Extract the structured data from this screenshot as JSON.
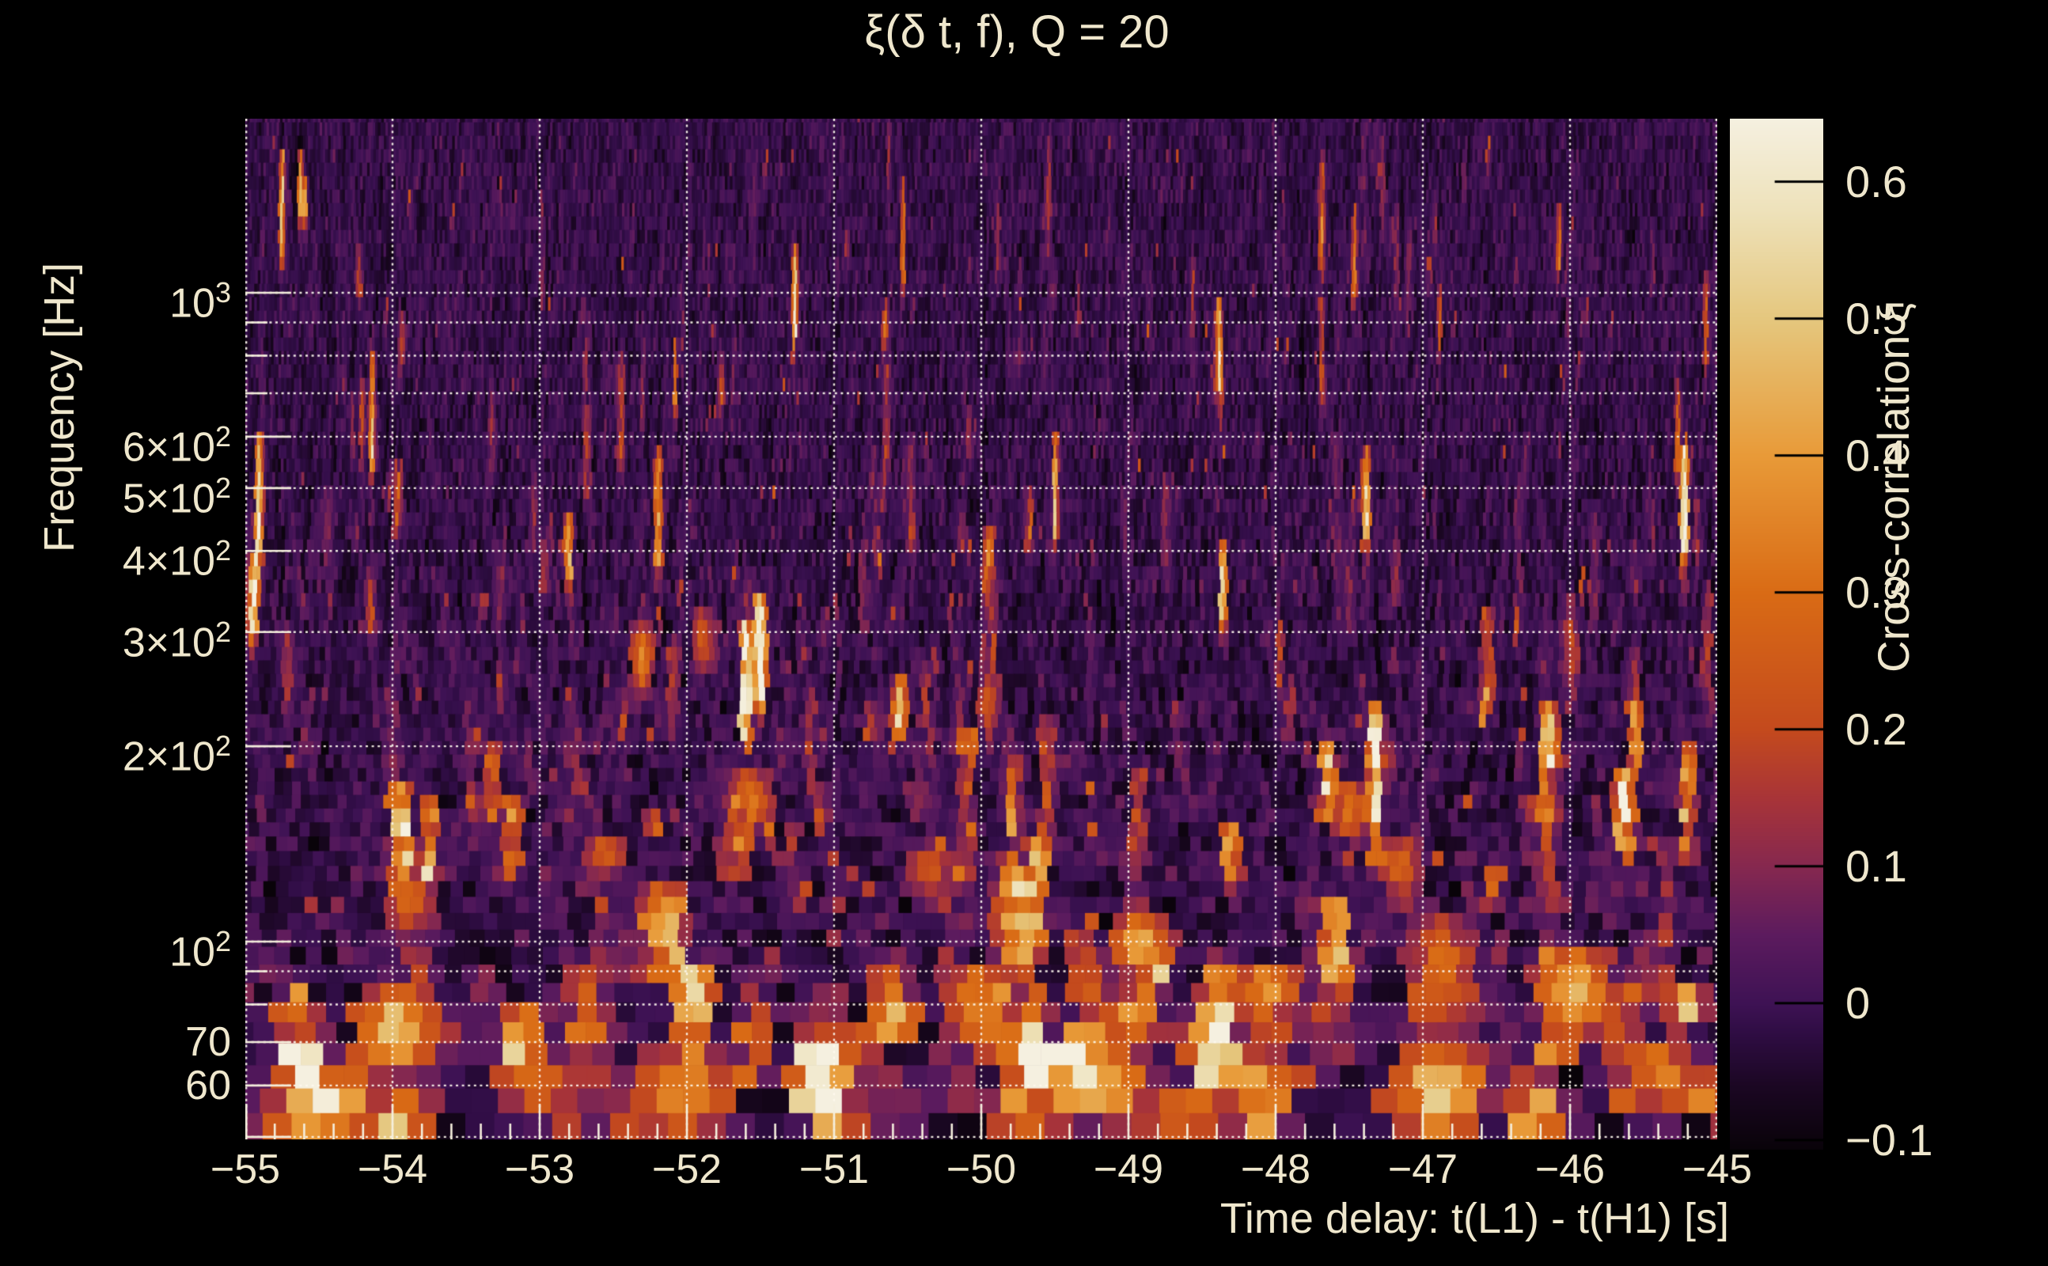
{
  "title": "ξ(δ t, f), Q = 20",
  "colors": {
    "background": "#000000",
    "text": "#efe7cd",
    "grid": "#fdf8ee",
    "tick": "#f5efdd",
    "colorbar_tick": "#000000"
  },
  "chart_data": {
    "type": "heatmap",
    "title": "ξ(δ t, f), Q = 20",
    "xlabel": "Time delay: t(L1) - t(H1) [s]",
    "ylabel": "Frequency [Hz]",
    "x_axis": {
      "range": [
        -55,
        -45
      ],
      "major_ticks": [
        -55,
        -54,
        -53,
        -52,
        -51,
        -50,
        -49,
        -48,
        -47,
        -46,
        -45
      ],
      "tick_labels": [
        "−55",
        "−54",
        "−53",
        "−52",
        "−51",
        "−50",
        "−49",
        "−48",
        "−47",
        "−46",
        "−45"
      ],
      "minor_step": 0.2,
      "grid": "dotted"
    },
    "y_axis": {
      "scale": "log",
      "range": [
        49.6,
        1853
      ],
      "labeled_ticks": [
        {
          "f": 1000,
          "m": "10",
          "e": "3"
        },
        {
          "f": 600,
          "m": "6×10",
          "e": "2"
        },
        {
          "f": 500,
          "m": "5×10",
          "e": "2"
        },
        {
          "f": 400,
          "m": "4×10",
          "e": "2"
        },
        {
          "f": 300,
          "m": "3×10",
          "e": "2"
        },
        {
          "f": 200,
          "m": "2×10",
          "e": "2"
        },
        {
          "f": 100,
          "m": "10",
          "e": "2"
        },
        {
          "f": 70,
          "m": "70"
        },
        {
          "f": 60,
          "m": "60"
        }
      ],
      "gridline_freqs": [
        50,
        60,
        70,
        80,
        90,
        100,
        200,
        300,
        400,
        500,
        600,
        700,
        800,
        900,
        1000
      ],
      "long_tick_freqs": [
        50,
        60,
        70,
        100,
        200,
        300,
        400,
        500,
        600,
        1000
      ],
      "short_tick_freqs": [
        80,
        90,
        700,
        800,
        900
      ],
      "grid": "dotted"
    },
    "colorbar": {
      "label": "Cross-correlation ξ",
      "range": [
        -0.107,
        0.646
      ],
      "ticks": [
        {
          "label": "0.6",
          "v": 0.6
        },
        {
          "label": "0.5",
          "v": 0.5
        },
        {
          "label": "0.4",
          "v": 0.4
        },
        {
          "label": "0.3",
          "v": 0.3
        },
        {
          "label": "0.2",
          "v": 0.2
        },
        {
          "label": "0.1",
          "v": 0.1
        },
        {
          "label": "0",
          "v": 0.0
        },
        {
          "label": "−0.1",
          "v": -0.1
        }
      ],
      "colormap_stops": [
        [
          -0.107,
          "#090309"
        ],
        [
          -0.06,
          "#1b0723"
        ],
        [
          -0.02,
          "#300d45"
        ],
        [
          0.0,
          "#3e1254"
        ],
        [
          0.05,
          "#5c1b5e"
        ],
        [
          0.1,
          "#86284f"
        ],
        [
          0.15,
          "#a83438"
        ],
        [
          0.2,
          "#c44a1d"
        ],
        [
          0.3,
          "#d96b15"
        ],
        [
          0.4,
          "#e89a38"
        ],
        [
          0.5,
          "#e5c77e"
        ],
        [
          0.58,
          "#eee2bb"
        ],
        [
          0.646,
          "#f5f0e0"
        ]
      ]
    },
    "tiling": {
      "note": "constant-Q style tiles: wider/taller at low frequency",
      "row_height_px": "max(17, 10 + 1150/f)",
      "tile_width_px": "max(3.2, 1900/f)"
    },
    "noise_model": {
      "seed": 20240517,
      "mean": -0.012,
      "sigma": "0.035 + 0.030*(70/f)^0.8",
      "spike_prob": "min(0.11, 0.012 + 0.05*(70/f)^1.1)",
      "n_streak_events": 260
    },
    "hotspots": [
      {
        "t": -54.45,
        "f_lo": 52,
        "f_hi": 63,
        "xi": 0.63
      },
      {
        "t": -54.52,
        "f_lo": 49.6,
        "f_hi": 54,
        "xi": 0.42
      },
      {
        "t": -53.97,
        "f_lo": 62,
        "f_hi": 86,
        "xi": 0.5
      },
      {
        "t": -53.9,
        "f_lo": 100,
        "f_hi": 135,
        "xi": 0.27
      },
      {
        "t": -53.02,
        "f_lo": 55,
        "f_hi": 66,
        "xi": 0.34
      },
      {
        "t": -52.3,
        "f_lo": 240,
        "f_hi": 310,
        "xi": 0.36
      },
      {
        "t": -52.05,
        "f_lo": 50,
        "f_hi": 68,
        "xi": 0.4
      },
      {
        "t": -51.9,
        "f_lo": 260,
        "f_hi": 330,
        "xi": 0.26
      },
      {
        "t": -51.55,
        "f_lo": 148,
        "f_hi": 185,
        "xi": 0.32
      },
      {
        "t": -51.0,
        "f_lo": 60,
        "f_hi": 76,
        "xi": 0.28
      },
      {
        "t": -50.35,
        "f_lo": 118,
        "f_hi": 142,
        "xi": 0.26
      },
      {
        "t": -50.02,
        "f_lo": 68,
        "f_hi": 95,
        "xi": 0.36
      },
      {
        "t": -49.95,
        "f_lo": 210,
        "f_hi": 260,
        "xi": 0.24
      },
      {
        "t": -49.7,
        "f_lo": 50,
        "f_hi": 58,
        "xi": 0.3
      },
      {
        "t": -48.92,
        "f_lo": 88,
        "f_hi": 112,
        "xi": 0.46
      },
      {
        "t": -48.6,
        "f_lo": 50,
        "f_hi": 60,
        "xi": 0.34
      },
      {
        "t": -48.05,
        "f_lo": 76,
        "f_hi": 94,
        "xi": 0.4
      },
      {
        "t": -47.5,
        "f_lo": 143,
        "f_hi": 178,
        "xi": 0.32
      },
      {
        "t": -47.15,
        "f_lo": 118,
        "f_hi": 146,
        "xi": 0.28
      },
      {
        "t": -46.88,
        "f_lo": 49.6,
        "f_hi": 70,
        "xi": 0.52
      },
      {
        "t": -46.87,
        "f_lo": 70,
        "f_hi": 112,
        "xi": 0.3
      },
      {
        "t": -46.2,
        "f_lo": 148,
        "f_hi": 172,
        "xi": 0.26
      },
      {
        "t": -45.97,
        "f_lo": 70,
        "f_hi": 100,
        "xi": 0.48
      },
      {
        "t": -45.1,
        "f_lo": 52,
        "f_hi": 64,
        "xi": 0.34
      },
      {
        "t": -52.55,
        "f_lo": 126,
        "f_hi": 148,
        "xi": 0.28
      }
    ]
  }
}
